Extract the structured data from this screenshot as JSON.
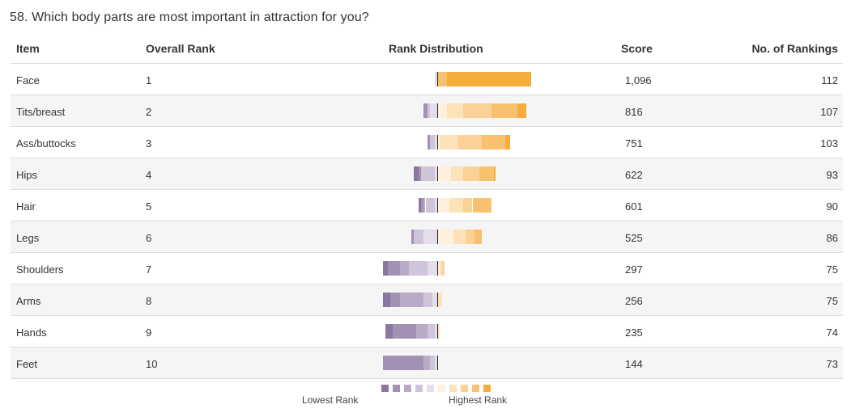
{
  "question": "58. Which body parts are most important in attraction for you?",
  "headers": {
    "item": "Item",
    "rank": "Overall Rank",
    "dist": "Rank Distribution",
    "score": "Score",
    "num": "No. of Rankings"
  },
  "legend": {
    "lowest": "Lowest Rank",
    "highest": "Highest Rank",
    "colors": [
      "#8c76a0",
      "#a391b3",
      "#b9abc7",
      "#cfc5da",
      "#e4deea",
      "#fdf0dc",
      "#fde2b9",
      "#fbd195",
      "#f8c170",
      "#f5ae3b"
    ]
  },
  "chart_data": {
    "type": "table",
    "distribution_type": "diverging stacked bar",
    "columns": [
      "Item",
      "Overall Rank",
      "Rank Distribution",
      "Score",
      "No. of Rankings"
    ],
    "rows": [
      {
        "item": "Face",
        "rank": "1",
        "score": "1,096",
        "count": "112",
        "dist": [
          0,
          0,
          0,
          0,
          1,
          0,
          0,
          0,
          4,
          36
        ]
      },
      {
        "item": "Tits/breast",
        "rank": "2",
        "score": "816",
        "count": "107",
        "dist": [
          0,
          2,
          0,
          1,
          3,
          4,
          7,
          12,
          11,
          4
        ]
      },
      {
        "item": "Ass/buttocks",
        "rank": "3",
        "score": "751",
        "count": "103",
        "dist": [
          0,
          1,
          0,
          2,
          1,
          1,
          8,
          10,
          10,
          2
        ]
      },
      {
        "item": "Hips",
        "rank": "4",
        "score": "622",
        "count": "93",
        "dist": [
          2,
          1,
          0,
          6,
          1,
          6,
          5,
          7,
          6,
          1
        ]
      },
      {
        "item": "Hair",
        "rank": "5",
        "score": "601",
        "count": "90",
        "dist": [
          1,
          1,
          1,
          4,
          1,
          5,
          6,
          4,
          8,
          0
        ]
      },
      {
        "item": "Legs",
        "rank": "6",
        "score": "525",
        "count": "86",
        "dist": [
          0,
          1,
          0,
          4,
          6,
          7,
          5,
          4,
          3,
          0
        ]
      },
      {
        "item": "Shoulders",
        "rank": "7",
        "score": "297",
        "count": "75",
        "dist": [
          2,
          5,
          4,
          8,
          4,
          1,
          1,
          1,
          0,
          0
        ]
      },
      {
        "item": "Arms",
        "rank": "8",
        "score": "256",
        "count": "75",
        "dist": [
          3,
          4,
          10,
          4,
          2,
          0,
          2,
          0,
          0,
          0
        ]
      },
      {
        "item": "Hands",
        "rank": "9",
        "score": "235",
        "count": "74",
        "dist": [
          3,
          10,
          5,
          3,
          1,
          0,
          1,
          0,
          0,
          0
        ]
      },
      {
        "item": "Feet",
        "rank": "10",
        "score": "144",
        "count": "73",
        "dist": [
          0,
          17,
          3,
          2,
          1,
          0,
          0,
          0,
          0,
          0
        ]
      }
    ]
  }
}
